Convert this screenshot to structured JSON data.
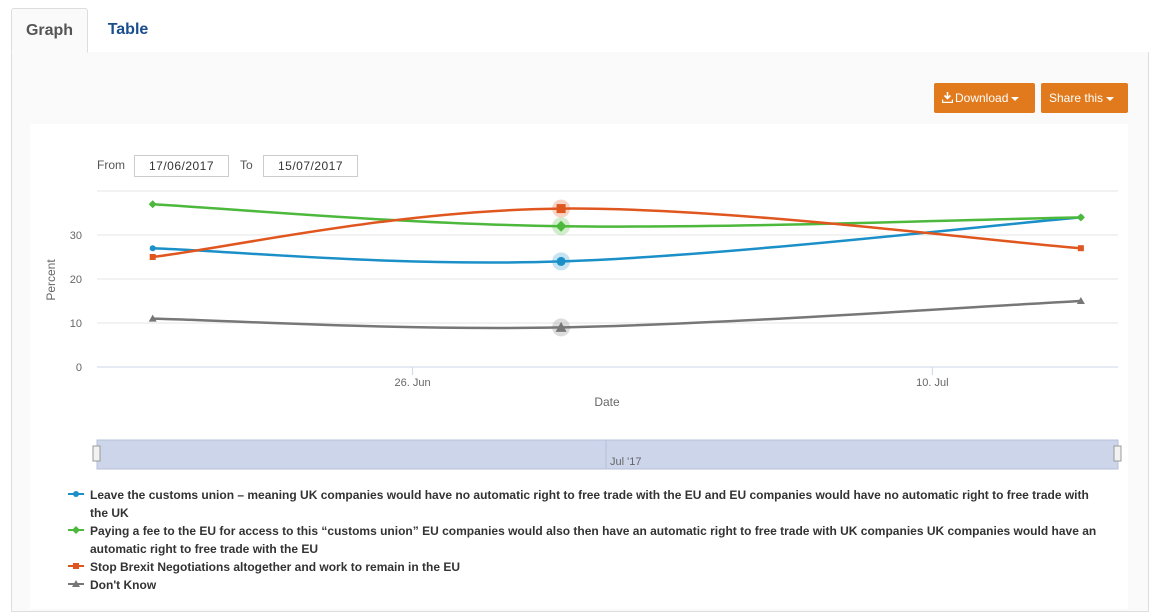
{
  "tabs": {
    "graph": "Graph",
    "table": "Table"
  },
  "toolbar": {
    "download_label": "Download",
    "share_label": "Share this"
  },
  "range": {
    "from_label": "From",
    "from_value": "17/06/2017",
    "to_label": "To",
    "to_value": "15/07/2017"
  },
  "navigator": {
    "label": "Jul '17"
  },
  "chart_data": {
    "type": "line",
    "x": [
      "2017-06-19",
      "2017-06-30",
      "2017-07-14"
    ],
    "xticks": [
      "26. Jun",
      "10. Jul"
    ],
    "xlabel": "Date",
    "ylabel": "Percent",
    "yticks": [
      0,
      10,
      20,
      30
    ],
    "ylim": [
      0,
      40
    ],
    "grid": true,
    "legend_position": "bottom",
    "series": [
      {
        "name": "Leave the customs union – meaning UK companies would have no automatic right to free trade with the EU and EU companies would have no automatic right to free trade with the UK",
        "color": "#1a8fc8",
        "marker": "circle",
        "values": [
          27,
          24,
          34
        ]
      },
      {
        "name": "Paying a fee to the EU for access to this “customs union” EU companies would also then have an automatic right to free trade with UK companies UK companies would have an automatic right to free trade with the EU",
        "color": "#4cb83c",
        "marker": "diamond",
        "values": [
          37,
          32,
          34
        ]
      },
      {
        "name": "Stop Brexit Negotiations altogether and work to remain in the EU",
        "color": "#e0561f",
        "marker": "square",
        "values": [
          25,
          36,
          27
        ]
      },
      {
        "name": "Don't Know",
        "color": "#777777",
        "marker": "triangle",
        "values": [
          11,
          9,
          15
        ]
      }
    ]
  }
}
